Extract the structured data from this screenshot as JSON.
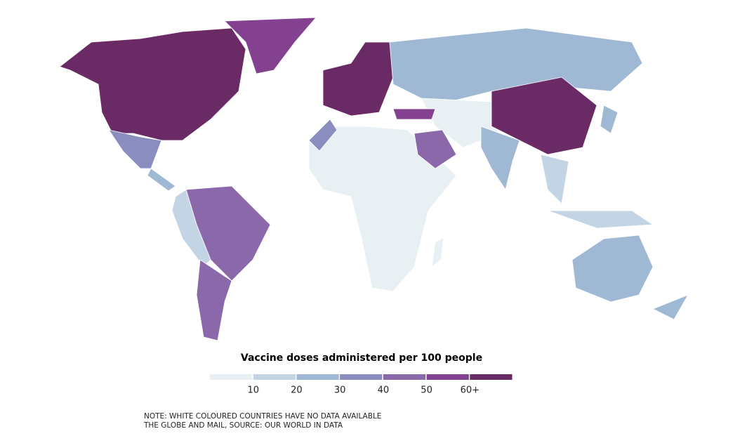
{
  "legend": {
    "title": "Vaccine doses administered per 100 people",
    "colors": [
      "#e8f0f4",
      "#c3d5e4",
      "#9fb8d3",
      "#8a8dbf",
      "#8a68aa",
      "#84418f",
      "#6a2a66"
    ],
    "range": [
      0,
      70
    ],
    "ticks": [
      10,
      20,
      30,
      40,
      50,
      {
        "value": 60,
        "label": "60+"
      }
    ]
  },
  "notes": [
    "NOTE: WHITE COLOURED COUNTRIES HAVE NO DATA AVAILABLE",
    "THE GLOBE AND MAIL, SOURCE: OUR WORLD IN DATA"
  ]
}
